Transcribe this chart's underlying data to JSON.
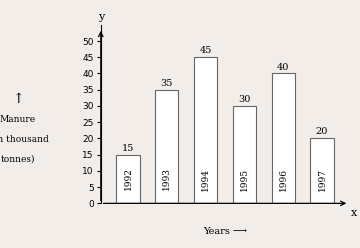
{
  "years": [
    "1992",
    "1993",
    "1994",
    "1995",
    "1996",
    "1997"
  ],
  "values": [
    15,
    35,
    45,
    30,
    40,
    20
  ],
  "bar_color": "#ffffff",
  "bar_edge_color": "#666666",
  "ylabel_line1": "Manure",
  "ylabel_line2": "( in thousand",
  "ylabel_line3": "tonnes)",
  "xlabel": "Years ⟶",
  "ylim": [
    0,
    55
  ],
  "yticks": [
    0,
    5,
    10,
    15,
    20,
    25,
    30,
    35,
    40,
    45,
    50
  ],
  "background_color": "#f2ede8",
  "bar_width": 0.6
}
